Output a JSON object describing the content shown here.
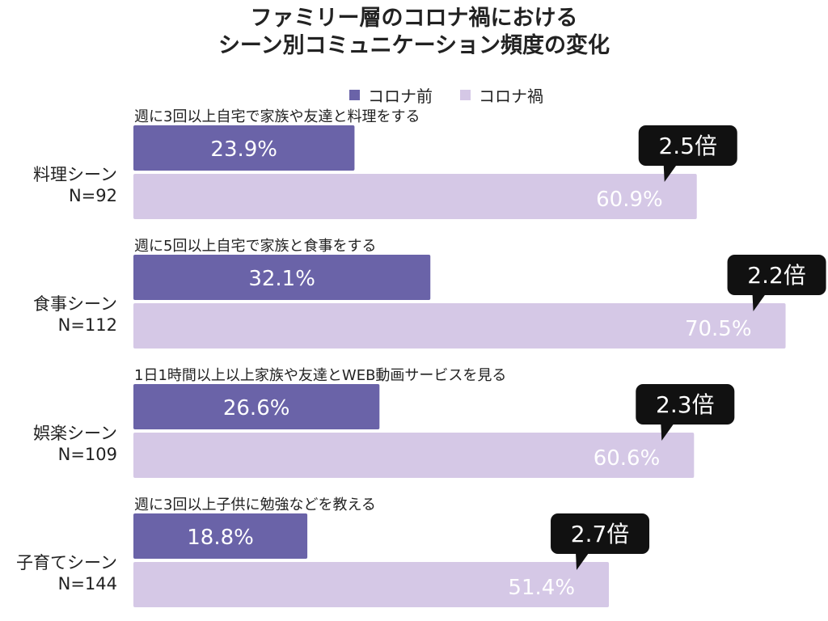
{
  "title_line1": "ファミリー層のコロナ禍における",
  "title_line2": "シーン別コミュニケーション頻度の変化",
  "colors": {
    "before": "#6a63a8",
    "during": "#d5c8e6",
    "callout": "#111111"
  },
  "legend": [
    {
      "label": "コロナ前",
      "color": "#6a63a8"
    },
    {
      "label": "コロナ禍",
      "color": "#d5c8e6"
    }
  ],
  "chart_data": {
    "type": "bar",
    "orientation": "horizontal",
    "value_unit": "%",
    "categories": [
      {
        "name": "料理シーン",
        "n_label": "N=92",
        "description": "週に3回以上自宅で家族や友達と料理をする",
        "before": 23.9,
        "during": 60.9,
        "ratio": "2.5倍"
      },
      {
        "name": "食事シーン",
        "n_label": "N=112",
        "description": "週に5回以上自宅で家族と食事をする",
        "before": 32.1,
        "during": 70.5,
        "ratio": "2.2倍"
      },
      {
        "name": "娯楽シーン",
        "n_label": "N=109",
        "description": "1日1時間以上以上家族や友達とWEB動画サービスを見る",
        "before": 26.6,
        "during": 60.6,
        "ratio": "2.3倍"
      },
      {
        "name": "子育てシーン",
        "n_label": "N=144",
        "description": "週に3回以上子供に勉強などを教える",
        "before": 18.8,
        "during": 51.4,
        "ratio": "2.7倍"
      }
    ],
    "series": [
      {
        "name": "コロナ前",
        "key": "before"
      },
      {
        "name": "コロナ禍",
        "key": "during"
      }
    ],
    "xlim": [
      0,
      71.5
    ],
    "legend_position": "top-center",
    "grid": false
  }
}
